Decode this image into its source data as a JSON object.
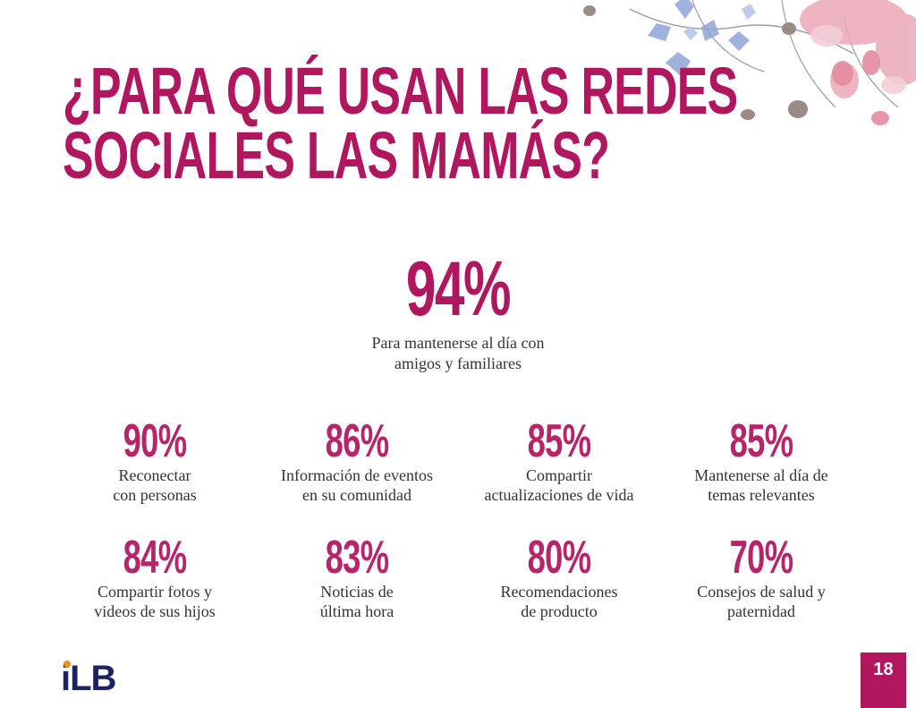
{
  "title": "¿PARA QUÉ USAN LAS REDES SOCIALES LAS MAMÁS?",
  "hero": {
    "percent": "94%",
    "description": "Para mantenerse al día con\namigos y familiares"
  },
  "stats": [
    {
      "percent": "90%",
      "description": "Reconectar\ncon personas"
    },
    {
      "percent": "86%",
      "description": "Información de eventos\nen su comunidad"
    },
    {
      "percent": "85%",
      "description": "Compartir\nactualizaciones de vida"
    },
    {
      "percent": "85%",
      "description": "Mantenerse al día de\ntemas relevantes"
    },
    {
      "percent": "84%",
      "description": "Compartir fotos y\nvideos de sus hijos"
    },
    {
      "percent": "83%",
      "description": "Noticias de\núltima hora"
    },
    {
      "percent": "80%",
      "description": "Recomendaciones\nde producto"
    },
    {
      "percent": "70%",
      "description": "Consejos de salud y\npaternidad"
    }
  ],
  "logo": {
    "i": "i",
    "rest": "LB"
  },
  "page_number": "18",
  "colors": {
    "accent": "#b0175f",
    "logo_blue": "#1c2360",
    "logo_orange": "#f08a24"
  }
}
